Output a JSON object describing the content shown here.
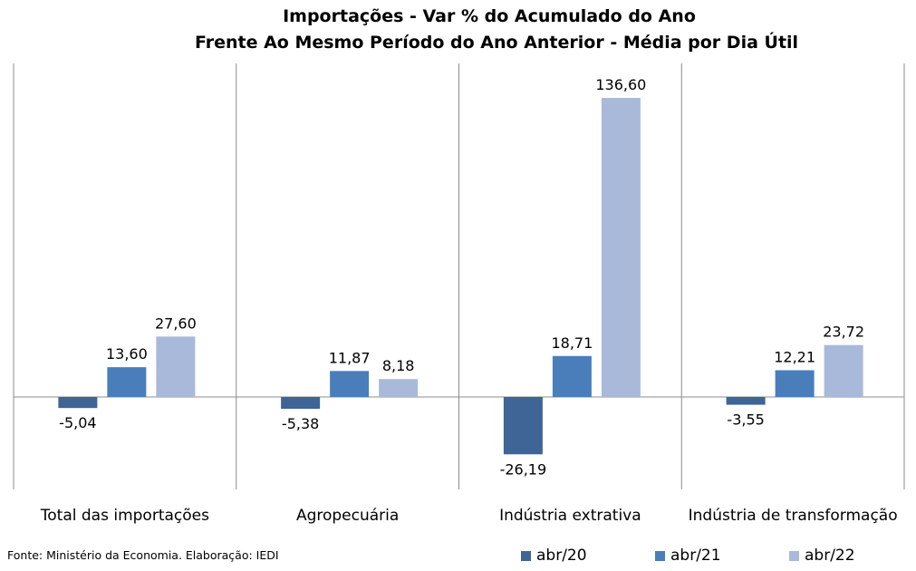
{
  "chart_data": {
    "type": "bar",
    "title": "Importações - Var % do Acumulado do Ano",
    "subtitle": "Frente Ao Mesmo Período do Ano Anterior - Média por Dia Útil",
    "categories": [
      "Total das importações",
      "Agropecuária",
      "Indústria extrativa",
      "Indústria de transformação"
    ],
    "series": [
      {
        "name": "abr/20",
        "color": "#3F6596",
        "values": [
          -5.04,
          -5.38,
          -26.19,
          -3.55
        ],
        "labels": [
          "-5,04",
          "-5,38",
          "-26,19",
          "-3,55"
        ]
      },
      {
        "name": "abr/21",
        "color": "#4A7EBB",
        "values": [
          13.6,
          11.87,
          18.71,
          12.21
        ],
        "labels": [
          "13,60",
          "11,87",
          "18,71",
          "12,21"
        ]
      },
      {
        "name": "abr/22",
        "color": "#A9B9D9",
        "values": [
          27.6,
          8.18,
          136.6,
          23.72
        ],
        "labels": [
          "27,60",
          "8,18",
          "136,60",
          "23,72"
        ]
      }
    ],
    "ylim": [
      -40,
      153
    ],
    "xlabel": "",
    "ylabel": "",
    "grid": false,
    "legend_position": "bottom-right"
  },
  "footer": {
    "source": "Fonte: Ministério da Economia. Elaboração: IEDI"
  }
}
